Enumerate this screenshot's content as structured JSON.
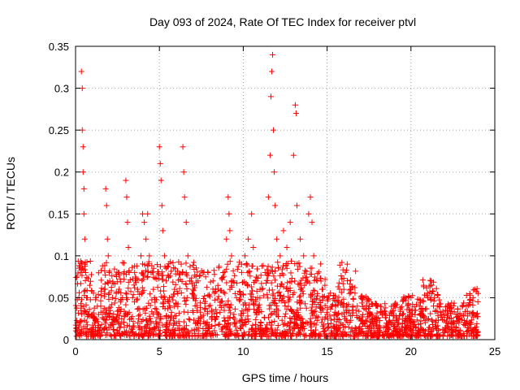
{
  "chart_data": {
    "type": "scatter",
    "title": "Day 093 of 2024, Rate Of TEC Index for receiver ptvl",
    "xlabel": "GPS time / hours",
    "ylabel": "ROTI / TECUs",
    "xlim": [
      0,
      25
    ],
    "ylim": [
      0,
      0.35
    ],
    "xticks": [
      0,
      5,
      10,
      15,
      20,
      25
    ],
    "yticks": [
      0,
      0.05,
      0.1,
      0.15,
      0.2,
      0.25,
      0.3,
      0.35
    ],
    "xtick_labels": [
      "0",
      "5",
      "10",
      "15",
      "20",
      "25"
    ],
    "ytick_labels": [
      "0",
      "0.05",
      "0.1",
      "0.15",
      "0.2",
      "0.25",
      "0.3",
      "0.35"
    ],
    "grid": true,
    "marker": "+",
    "color": "#ff0000",
    "series": [
      {
        "name": "ROTI",
        "points": [
          [
            0.1,
            0.02
          ],
          [
            0.2,
            0.05
          ],
          [
            0.3,
            0.08
          ],
          [
            0.35,
            0.32
          ],
          [
            0.4,
            0.3
          ],
          [
            0.4,
            0.25
          ],
          [
            0.45,
            0.23
          ],
          [
            0.45,
            0.2
          ],
          [
            0.5,
            0.18
          ],
          [
            0.5,
            0.15
          ],
          [
            0.55,
            0.12
          ],
          [
            0.6,
            0.08
          ],
          [
            0.7,
            0.05
          ],
          [
            0.8,
            0.03
          ],
          [
            1.0,
            0.03
          ],
          [
            1.2,
            0.05
          ],
          [
            1.5,
            0.04
          ],
          [
            1.7,
            0.06
          ],
          [
            1.8,
            0.18
          ],
          [
            1.85,
            0.16
          ],
          [
            1.9,
            0.12
          ],
          [
            1.95,
            0.1
          ],
          [
            2.0,
            0.08
          ],
          [
            2.2,
            0.05
          ],
          [
            2.5,
            0.03
          ],
          [
            2.8,
            0.05
          ],
          [
            3.0,
            0.19
          ],
          [
            3.05,
            0.17
          ],
          [
            3.1,
            0.14
          ],
          [
            3.15,
            0.11
          ],
          [
            3.2,
            0.08
          ],
          [
            3.4,
            0.05
          ],
          [
            3.7,
            0.06
          ],
          [
            3.9,
            0.1
          ],
          [
            4.0,
            0.15
          ],
          [
            4.1,
            0.14
          ],
          [
            4.2,
            0.12
          ],
          [
            4.3,
            0.15
          ],
          [
            4.4,
            0.1
          ],
          [
            4.5,
            0.08
          ],
          [
            4.7,
            0.05
          ],
          [
            5.0,
            0.23
          ],
          [
            5.05,
            0.21
          ],
          [
            5.1,
            0.19
          ],
          [
            5.15,
            0.16
          ],
          [
            5.2,
            0.13
          ],
          [
            5.3,
            0.1
          ],
          [
            5.4,
            0.07
          ],
          [
            5.6,
            0.05
          ],
          [
            5.9,
            0.06
          ],
          [
            6.3,
            0.09
          ],
          [
            6.4,
            0.23
          ],
          [
            6.45,
            0.2
          ],
          [
            6.5,
            0.17
          ],
          [
            6.6,
            0.14
          ],
          [
            6.7,
            0.1
          ],
          [
            6.8,
            0.07
          ],
          [
            7.0,
            0.06
          ],
          [
            7.3,
            0.07
          ],
          [
            7.6,
            0.08
          ],
          [
            7.9,
            0.08
          ],
          [
            8.2,
            0.07
          ],
          [
            8.5,
            0.06
          ],
          [
            8.8,
            0.08
          ],
          [
            9.0,
            0.12
          ],
          [
            9.1,
            0.17
          ],
          [
            9.15,
            0.15
          ],
          [
            9.2,
            0.13
          ],
          [
            9.3,
            0.1
          ],
          [
            9.4,
            0.07
          ],
          [
            9.6,
            0.05
          ],
          [
            9.9,
            0.09
          ],
          [
            10.1,
            0.1
          ],
          [
            10.3,
            0.12
          ],
          [
            10.5,
            0.15
          ],
          [
            10.6,
            0.11
          ],
          [
            10.8,
            0.07
          ],
          [
            11.0,
            0.06
          ],
          [
            11.3,
            0.08
          ],
          [
            11.5,
            0.17
          ],
          [
            11.6,
            0.22
          ],
          [
            11.65,
            0.29
          ],
          [
            11.7,
            0.32
          ],
          [
            11.75,
            0.34
          ],
          [
            11.8,
            0.25
          ],
          [
            11.85,
            0.2
          ],
          [
            11.9,
            0.16
          ],
          [
            12.0,
            0.12
          ],
          [
            12.2,
            0.1
          ],
          [
            12.4,
            0.13
          ],
          [
            12.6,
            0.11
          ],
          [
            12.8,
            0.14
          ],
          [
            13.0,
            0.22
          ],
          [
            13.1,
            0.28
          ],
          [
            13.15,
            0.27
          ],
          [
            13.2,
            0.16
          ],
          [
            13.4,
            0.12
          ],
          [
            13.6,
            0.1
          ],
          [
            13.9,
            0.15
          ],
          [
            14.0,
            0.17
          ],
          [
            14.1,
            0.14
          ],
          [
            14.2,
            0.1
          ],
          [
            14.4,
            0.07
          ],
          [
            14.7,
            0.06
          ],
          [
            15.0,
            0.05
          ],
          [
            15.5,
            0.04
          ],
          [
            16.0,
            0.06
          ],
          [
            16.2,
            0.09
          ],
          [
            16.4,
            0.06
          ],
          [
            16.8,
            0.04
          ],
          [
            17.2,
            0.05
          ],
          [
            17.6,
            0.03
          ],
          [
            18.0,
            0.04
          ],
          [
            18.5,
            0.03
          ],
          [
            19.0,
            0.04
          ],
          [
            19.5,
            0.03
          ],
          [
            20.0,
            0.05
          ],
          [
            20.5,
            0.04
          ],
          [
            21.0,
            0.05
          ],
          [
            21.2,
            0.07
          ],
          [
            21.4,
            0.05
          ],
          [
            21.8,
            0.03
          ],
          [
            22.3,
            0.04
          ],
          [
            22.8,
            0.03
          ],
          [
            23.3,
            0.04
          ],
          [
            23.7,
            0.05
          ],
          [
            23.8,
            0.06
          ],
          [
            23.9,
            0.03
          ]
        ]
      }
    ]
  }
}
